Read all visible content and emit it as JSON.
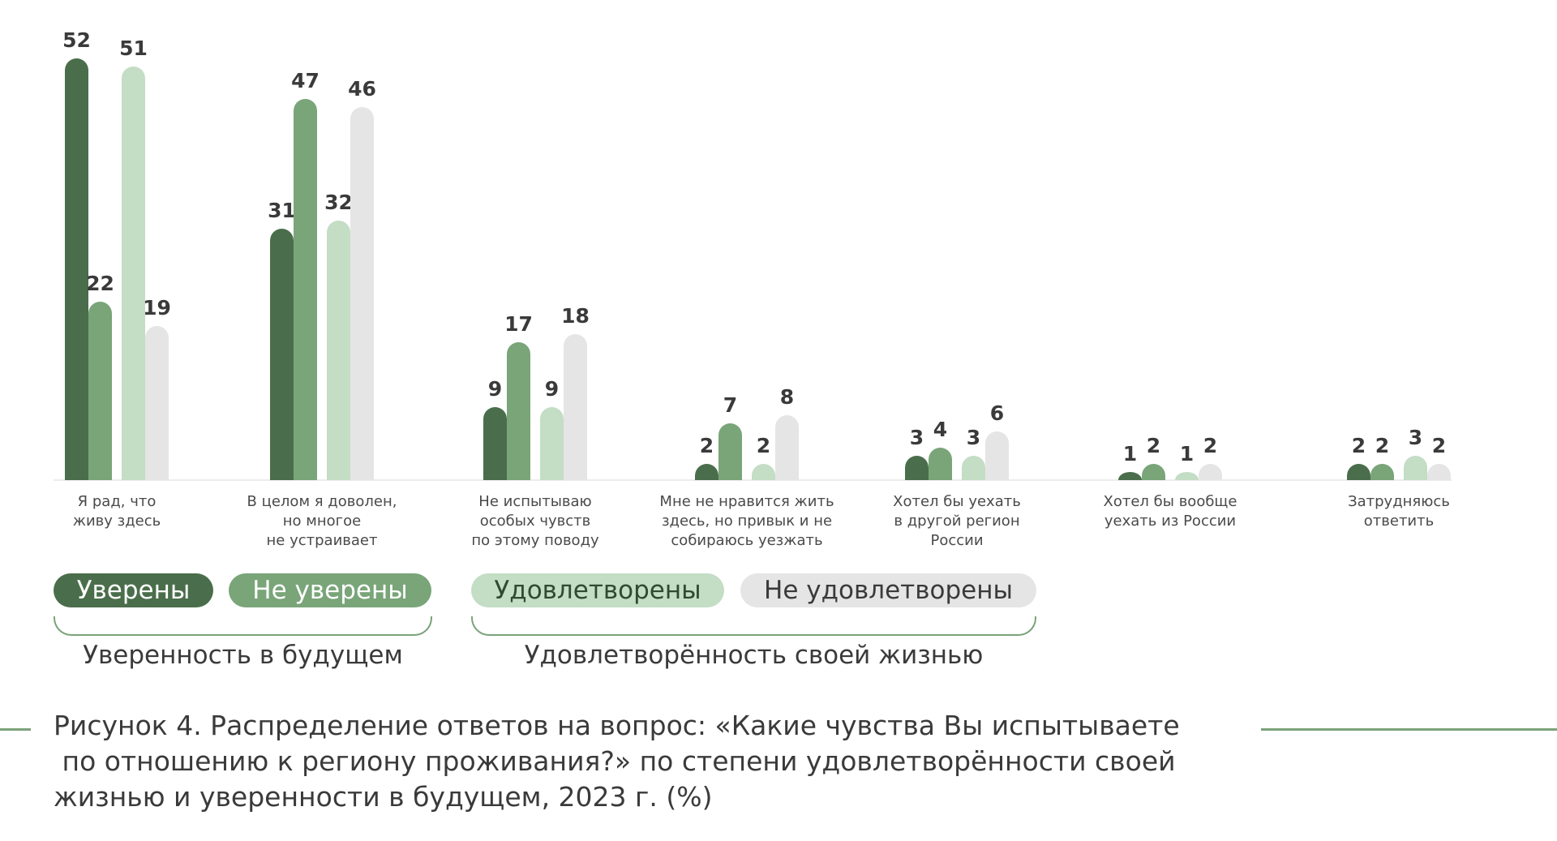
{
  "chart_data": {
    "type": "bar",
    "categories": [
      [
        "Я рад, что",
        "живу здесь"
      ],
      [
        "В целом я доволен,",
        "но многое",
        "не устраивает"
      ],
      [
        "Не испытываю",
        "особых чувств",
        "по этому поводу"
      ],
      [
        "Мне не нравится жить",
        "здесь, но привык и не",
        "собираюсь уезжать"
      ],
      [
        "Хотел бы уехать",
        "в другой регион",
        "России"
      ],
      [
        "Хотел бы вообще",
        "уехать из России"
      ],
      [
        "Затрудняюсь",
        "ответить"
      ]
    ],
    "series": [
      {
        "name": "Уверены",
        "color": "#4a6e4b",
        "values": [
          52,
          31,
          9,
          2,
          3,
          1,
          2
        ]
      },
      {
        "name": "Не уверены",
        "color": "#79a579",
        "values": [
          22,
          47,
          17,
          7,
          4,
          2,
          2
        ]
      },
      {
        "name": "Удовлетворены",
        "color": "#c4ddc5",
        "values": [
          51,
          32,
          9,
          2,
          3,
          1,
          3
        ]
      },
      {
        "name": "Не удовлетворены",
        "color": "#e5e5e5",
        "values": [
          19,
          46,
          18,
          8,
          6,
          2,
          2
        ]
      }
    ],
    "ylim": [
      0,
      52
    ],
    "grid": false
  },
  "legend": {
    "confident": "Уверены",
    "not_confident": "Не уверены",
    "satisfied": "Удовлетворены",
    "not_satisfied": "Не удовлетворены"
  },
  "groups": {
    "confidence_title": "Уверенность в будущем",
    "satisfaction_title": "Удовлетворённость своей жизнью"
  },
  "caption": {
    "line1": "Рисунок 4. Распределение ответов на вопрос: «Какие чувства Вы испытываете",
    "line2": " по отношению к региону проживания?» по степени удовлетворённости своей",
    "line3": "жизнью и уверенности в будущем, 2023 г. (%)"
  }
}
